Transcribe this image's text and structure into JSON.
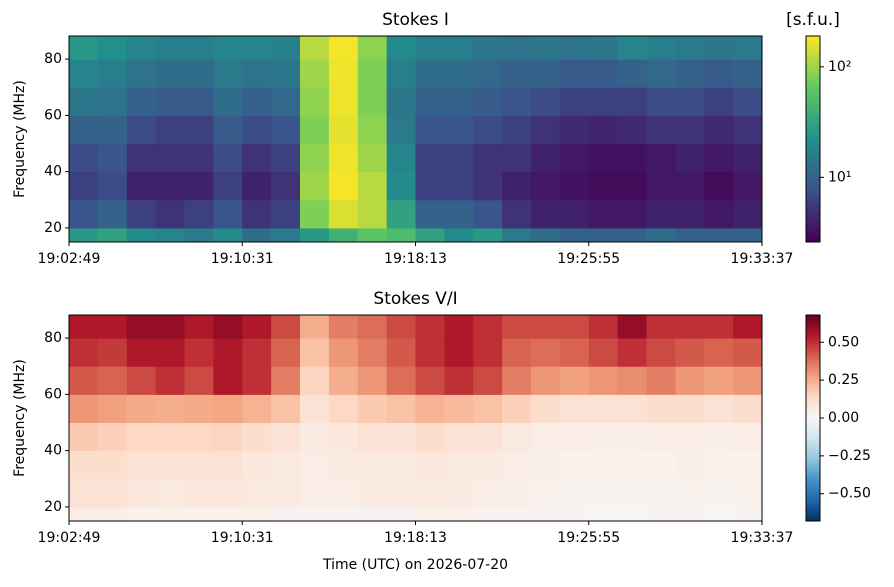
{
  "chart_data": [
    {
      "type": "heatmap",
      "title": "Stokes I",
      "ylabel": "Frequency (MHz)",
      "colorbar_label": "[s.f.u.]",
      "xticks": [
        "19:02:49",
        "19:10:31",
        "19:18:13",
        "19:25:55",
        "19:33:37"
      ],
      "ylim": [
        15,
        88.2
      ],
      "yticks": [
        20,
        40,
        60,
        80
      ],
      "freq_bins": [
        15,
        20,
        30,
        40,
        50,
        60,
        70,
        80,
        88.2
      ],
      "clim": [
        2.6,
        190
      ],
      "log_color": true,
      "cticks": [
        {
          "value": 10,
          "label": "10¹"
        },
        {
          "value": 100,
          "label": "10²"
        }
      ],
      "colorscale": [
        "#440154",
        "#3b528b",
        "#21918c",
        "#5ec962",
        "#fde725"
      ],
      "z": [
        [
          25,
          30,
          20,
          18,
          15,
          20,
          12,
          15,
          25,
          40,
          60,
          50,
          30,
          20,
          25,
          15,
          12,
          10,
          10,
          10,
          12,
          10,
          10,
          10
        ],
        [
          8,
          10,
          6,
          5,
          6,
          8,
          5,
          6,
          80,
          150,
          120,
          30,
          10,
          10,
          8,
          5,
          4,
          4,
          3.5,
          3.5,
          4,
          4,
          3.5,
          4
        ],
        [
          6,
          7,
          4,
          4,
          4,
          6,
          4,
          5,
          100,
          180,
          120,
          20,
          6,
          6,
          5,
          4,
          3.5,
          3.2,
          3,
          3,
          3.5,
          3.5,
          3,
          3.5
        ],
        [
          7,
          8,
          5,
          5,
          5,
          7,
          5,
          6,
          90,
          170,
          100,
          18,
          6,
          6,
          5,
          5,
          4,
          3.5,
          3.2,
          3.2,
          3.5,
          4,
          3.5,
          4
        ],
        [
          10,
          10,
          7,
          6,
          6,
          9,
          7,
          8,
          80,
          160,
          90,
          15,
          8,
          8,
          7,
          6,
          5,
          4.5,
          4.2,
          4.5,
          5,
          5,
          4.5,
          5
        ],
        [
          14,
          13,
          10,
          9,
          9,
          12,
          10,
          11,
          90,
          170,
          80,
          14,
          10,
          10,
          9,
          8,
          7,
          6,
          6,
          6,
          7,
          7,
          6,
          7
        ],
        [
          18,
          16,
          13,
          12,
          12,
          15,
          13,
          14,
          100,
          170,
          80,
          16,
          12,
          12,
          11,
          10,
          10,
          9,
          9,
          10,
          11,
          10,
          9,
          10
        ],
        [
          25,
          22,
          18,
          16,
          16,
          18,
          18,
          17,
          120,
          180,
          90,
          20,
          16,
          16,
          14,
          13,
          14,
          13,
          14,
          18,
          16,
          15,
          14,
          15
        ]
      ]
    },
    {
      "type": "heatmap",
      "title": "Stokes V/I",
      "ylabel": "Frequency (MHz)",
      "xlabel": "Time (UTC) on 2026-07-20",
      "xticks": [
        "19:02:49",
        "19:10:31",
        "19:18:13",
        "19:25:55",
        "19:33:37"
      ],
      "ylim": [
        15,
        88.2
      ],
      "yticks": [
        20,
        40,
        60,
        80
      ],
      "freq_bins": [
        15,
        20,
        30,
        40,
        50,
        60,
        70,
        80,
        88.2
      ],
      "clim": [
        -0.68,
        0.68
      ],
      "log_color": false,
      "cticks": [
        {
          "value": -0.5,
          "label": "−0.50"
        },
        {
          "value": -0.25,
          "label": "−0.25"
        },
        {
          "value": 0,
          "label": "0.00"
        },
        {
          "value": 0.25,
          "label": "0.25"
        },
        {
          "value": 0.5,
          "label": "0.50"
        }
      ],
      "colorscale": [
        "#053061",
        "#2166ac",
        "#4393c3",
        "#92c5de",
        "#d1e5f0",
        "#f7f7f7",
        "#fddbc7",
        "#f4a582",
        "#d6604d",
        "#b2182b",
        "#67001f"
      ],
      "z": [
        [
          0.05,
          0.05,
          0.03,
          0.03,
          0.03,
          0.03,
          0.03,
          0.02,
          0.02,
          0.02,
          0.02,
          0.02,
          0.03,
          0.03,
          0.02,
          0.02,
          0.02,
          0.02,
          0.01,
          0.01,
          0.02,
          0.02,
          0.01,
          0.02
        ],
        [
          0.1,
          0.1,
          0.08,
          0.07,
          0.08,
          0.08,
          0.07,
          0.06,
          0.05,
          0.05,
          0.06,
          0.06,
          0.07,
          0.06,
          0.05,
          0.04,
          0.03,
          0.02,
          0.02,
          0.02,
          0.02,
          0.03,
          0.02,
          0.03
        ],
        [
          0.12,
          0.12,
          0.1,
          0.1,
          0.1,
          0.1,
          0.08,
          0.07,
          0.05,
          0.06,
          0.07,
          0.07,
          0.08,
          0.07,
          0.06,
          0.05,
          0.04,
          0.03,
          0.03,
          0.03,
          0.03,
          0.04,
          0.03,
          0.03
        ],
        [
          0.18,
          0.16,
          0.14,
          0.14,
          0.14,
          0.15,
          0.12,
          0.1,
          0.06,
          0.08,
          0.1,
          0.1,
          0.12,
          0.1,
          0.09,
          0.07,
          0.05,
          0.05,
          0.04,
          0.04,
          0.05,
          0.05,
          0.04,
          0.05
        ],
        [
          0.3,
          0.28,
          0.26,
          0.25,
          0.26,
          0.27,
          0.24,
          0.2,
          0.1,
          0.14,
          0.18,
          0.2,
          0.24,
          0.22,
          0.2,
          0.16,
          0.12,
          0.1,
          0.1,
          0.1,
          0.12,
          0.12,
          0.1,
          0.12
        ],
        [
          0.42,
          0.4,
          0.45,
          0.5,
          0.45,
          0.55,
          0.5,
          0.35,
          0.15,
          0.25,
          0.3,
          0.38,
          0.45,
          0.5,
          0.45,
          0.35,
          0.3,
          0.28,
          0.3,
          0.32,
          0.35,
          0.3,
          0.28,
          0.3
        ],
        [
          0.5,
          0.48,
          0.55,
          0.55,
          0.5,
          0.55,
          0.5,
          0.4,
          0.2,
          0.3,
          0.35,
          0.42,
          0.5,
          0.55,
          0.5,
          0.4,
          0.38,
          0.4,
          0.45,
          0.5,
          0.45,
          0.42,
          0.4,
          0.42
        ],
        [
          0.55,
          0.55,
          0.6,
          0.6,
          0.55,
          0.6,
          0.55,
          0.45,
          0.25,
          0.35,
          0.38,
          0.45,
          0.5,
          0.55,
          0.5,
          0.45,
          0.45,
          0.45,
          0.5,
          0.6,
          0.5,
          0.5,
          0.5,
          0.55
        ]
      ]
    }
  ]
}
